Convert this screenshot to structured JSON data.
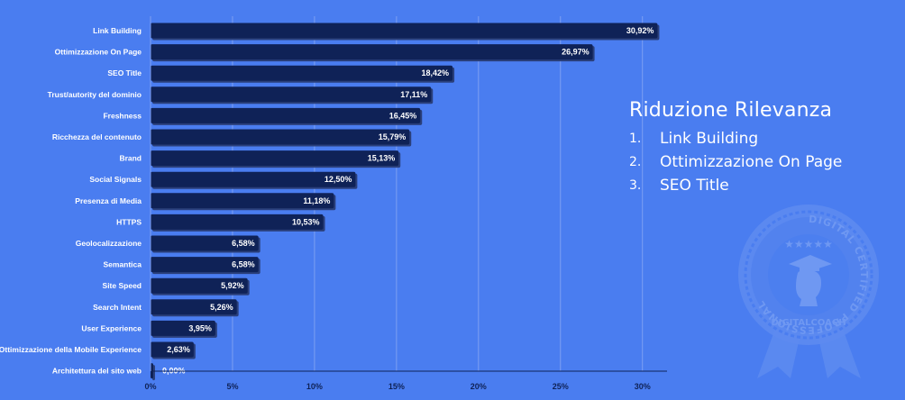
{
  "chart_data": {
    "type": "bar",
    "orientation": "horizontal",
    "categories": [
      "Link Building",
      "Ottimizzazione On Page",
      "SEO Title",
      "Trust/autority del dominio",
      "Freshness",
      "Ricchezza del contenuto",
      "Brand",
      "Social Signals",
      "Presenza di Media",
      "HTTPS",
      "Geolocalizzazione",
      "Semantica",
      "Site Speed",
      "Search Intent",
      "User Experience",
      "Ottimizzazione della Mobile Experience",
      "Architettura del sito web"
    ],
    "values": [
      30.92,
      26.97,
      18.42,
      17.11,
      16.45,
      15.79,
      15.13,
      12.5,
      11.18,
      10.53,
      6.58,
      6.58,
      5.92,
      5.26,
      3.95,
      2.63,
      0.0
    ],
    "value_labels": [
      "30,92%",
      "26,97%",
      "18,42%",
      "17,11%",
      "16,45%",
      "15,79%",
      "15,13%",
      "12,50%",
      "11,18%",
      "10,53%",
      "6,58%",
      "6,58%",
      "5,92%",
      "5,26%",
      "3,95%",
      "2,63%",
      "0,00%"
    ],
    "x_ticks": [
      0,
      5,
      10,
      15,
      20,
      25,
      30
    ],
    "x_tick_labels": [
      "0%",
      "5%",
      "10%",
      "15%",
      "20%",
      "25%",
      "30%"
    ],
    "xlim": [
      0,
      31.5
    ],
    "grid": true,
    "bar_color": "#0f2257",
    "label_color": "#ffffff"
  },
  "side_panel": {
    "title": "Riduzione Rilevanza",
    "items": [
      {
        "num": "1.",
        "label": "Link Building"
      },
      {
        "num": "2.",
        "label": "Ottimizzazione On Page"
      },
      {
        "num": "3.",
        "label": "SEO Title"
      }
    ]
  },
  "badge": {
    "ring_text": "DIGITAL CERTIFIED PROFESSIONAL",
    "brand_text": "DIGITALCOACH",
    "stars": "★★★★★"
  },
  "colors": {
    "background": "#4a7df0",
    "badge": "#5d8bf0"
  }
}
